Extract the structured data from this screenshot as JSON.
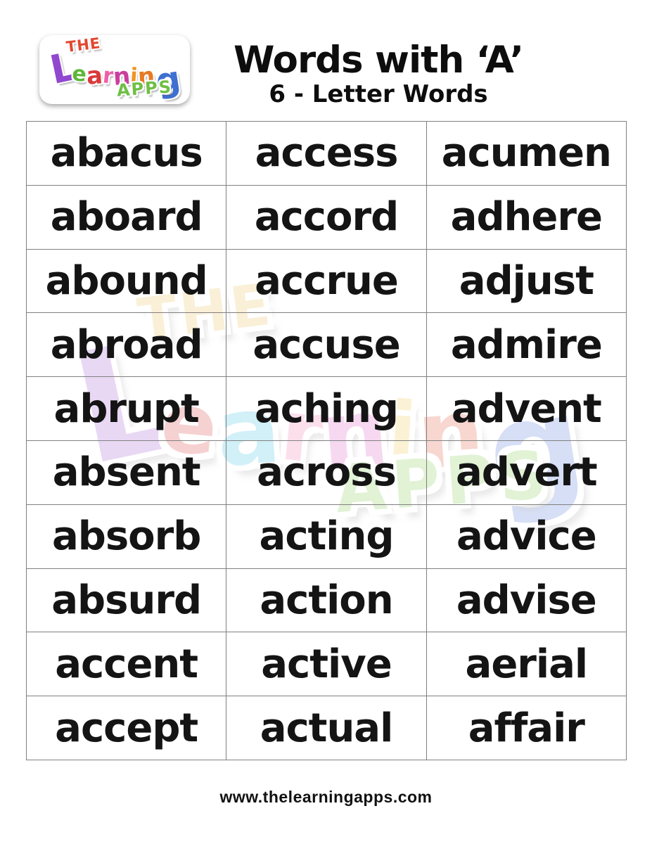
{
  "header": {
    "title": "Words with ‘A’",
    "subtitle": "6 - Letter Words"
  },
  "logo": {
    "the": "THE",
    "the_color": "#e2472e",
    "learning_letters": [
      {
        "ch": "L",
        "color": "#9147cf"
      },
      {
        "ch": "e",
        "color": "#5cb836"
      },
      {
        "ch": "a",
        "color": "#d93a3a"
      },
      {
        "ch": "r",
        "color": "#ef5fa7"
      },
      {
        "ch": "n",
        "color": "#c93f9d"
      },
      {
        "ch": "i",
        "color": "#f0941f"
      },
      {
        "ch": "n",
        "color": "#e87a22"
      },
      {
        "ch": "g",
        "color": "#3f6fd0"
      }
    ],
    "apps": "APPS",
    "apps_color": "#6fbf44"
  },
  "watermark": {
    "the": "THE",
    "the_color": "#eec76a",
    "learning_letters": [
      {
        "ch": "L",
        "color": "#a86bd8"
      },
      {
        "ch": "e",
        "color": "#e05252"
      },
      {
        "ch": "a",
        "color": "#52c8e8"
      },
      {
        "ch": "r",
        "color": "#f08ab8"
      },
      {
        "ch": "n",
        "color": "#e070c8"
      },
      {
        "ch": "i",
        "color": "#f0d060"
      },
      {
        "ch": "n",
        "color": "#e86850"
      },
      {
        "ch": "g",
        "color": "#6888e0"
      }
    ],
    "apps": "APPS",
    "apps_color": "#90d060"
  },
  "grid": {
    "columns": 3,
    "rows": [
      [
        "abacus",
        "access",
        "acumen"
      ],
      [
        "aboard",
        "accord",
        "adhere"
      ],
      [
        "abound",
        "accrue",
        "adjust"
      ],
      [
        "abroad",
        "accuse",
        "admire"
      ],
      [
        "abrupt",
        "aching",
        "advent"
      ],
      [
        "absent",
        "across",
        "advert"
      ],
      [
        "absorb",
        "acting",
        "advice"
      ],
      [
        "absurd",
        "action",
        "advise"
      ],
      [
        "accent",
        "active",
        "aerial"
      ],
      [
        "accept",
        "actual",
        "affair"
      ]
    ]
  },
  "footer": {
    "url": "www.thelearningapps.com"
  },
  "colors": {
    "word_text": "#141414",
    "grid_border": "#808080",
    "page_background": "#ffffff"
  }
}
